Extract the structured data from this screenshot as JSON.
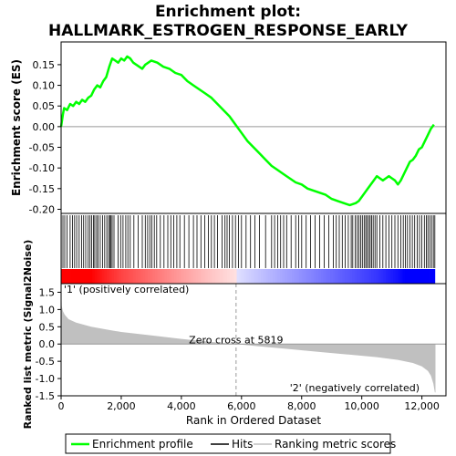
{
  "chart_data": {
    "title_line1": "Enrichment plot:",
    "title_line2": "HALLMARK_ESTROGEN_RESPONSE_EARLY",
    "es_panel": {
      "type": "line",
      "ylabel": "Enrichment score (ES)",
      "ylim": [
        -0.21,
        0.205
      ],
      "yticks": [
        0.15,
        0.1,
        0.05,
        0.0,
        -0.05,
        -0.1,
        -0.15,
        -0.2
      ],
      "ytick_labels": [
        "0.15",
        "0.10",
        "0.05",
        "0.00",
        "-0.05",
        "-0.10",
        "-0.15",
        "-0.20"
      ],
      "color": "#00ff00",
      "x": [
        0,
        60,
        100,
        200,
        300,
        400,
        500,
        600,
        700,
        800,
        900,
        1000,
        1100,
        1200,
        1300,
        1400,
        1500,
        1600,
        1700,
        1800,
        1900,
        2000,
        2100,
        2200,
        2300,
        2400,
        2500,
        2600,
        2700,
        2800,
        2900,
        3000,
        3200,
        3400,
        3600,
        3800,
        4000,
        4200,
        4400,
        4600,
        4800,
        5000,
        5200,
        5400,
        5600,
        5800,
        6000,
        6200,
        6400,
        6600,
        6800,
        7000,
        7200,
        7400,
        7600,
        7800,
        8000,
        8200,
        8400,
        8600,
        8800,
        9000,
        9200,
        9400,
        9600,
        9800,
        9900,
        10000,
        10100,
        10200,
        10300,
        10400,
        10500,
        10600,
        10700,
        10800,
        10900,
        11000,
        11100,
        11200,
        11300,
        11400,
        11500,
        11600,
        11700,
        11800,
        11900,
        12000,
        12100,
        12200,
        12300,
        12400
      ],
      "y": [
        0.0,
        0.03,
        0.045,
        0.04,
        0.055,
        0.05,
        0.06,
        0.055,
        0.065,
        0.06,
        0.07,
        0.075,
        0.09,
        0.1,
        0.095,
        0.11,
        0.12,
        0.145,
        0.165,
        0.16,
        0.155,
        0.165,
        0.16,
        0.17,
        0.165,
        0.155,
        0.15,
        0.145,
        0.14,
        0.15,
        0.155,
        0.16,
        0.155,
        0.145,
        0.14,
        0.13,
        0.125,
        0.11,
        0.1,
        0.09,
        0.08,
        0.07,
        0.055,
        0.04,
        0.025,
        0.005,
        -0.015,
        -0.035,
        -0.05,
        -0.065,
        -0.08,
        -0.095,
        -0.105,
        -0.115,
        -0.125,
        -0.135,
        -0.14,
        -0.15,
        -0.155,
        -0.16,
        -0.165,
        -0.175,
        -0.18,
        -0.185,
        -0.19,
        -0.185,
        -0.18,
        -0.17,
        -0.16,
        -0.15,
        -0.14,
        -0.13,
        -0.12,
        -0.125,
        -0.13,
        -0.125,
        -0.12,
        -0.125,
        -0.13,
        -0.14,
        -0.13,
        -0.115,
        -0.1,
        -0.085,
        -0.08,
        -0.07,
        -0.055,
        -0.05,
        -0.035,
        -0.02,
        -0.005,
        0.005
      ]
    },
    "hits_panel": {
      "hit_positions": [
        5,
        60,
        120,
        200,
        300,
        380,
        450,
        520,
        600,
        680,
        750,
        820,
        900,
        960,
        1020,
        1080,
        1120,
        1180,
        1230,
        1300,
        1380,
        1450,
        1520,
        1580,
        1620,
        1660,
        1700,
        1760,
        1900,
        1980,
        2060,
        2150,
        2220,
        2300,
        2420,
        2560,
        2700,
        2800,
        2880,
        2950,
        3020,
        3100,
        3180,
        3300,
        3420,
        3550,
        3650,
        3750,
        3850,
        3950,
        4100,
        4250,
        4400,
        4520,
        4650,
        4780,
        4900,
        5000,
        5100,
        5200,
        5350,
        5450,
        5520,
        5600,
        5700,
        5800,
        5900,
        6000,
        6150,
        6300,
        6450,
        6600,
        6800,
        7000,
        7100,
        7200,
        7300,
        7400,
        7500,
        7650,
        7800,
        7900,
        8000,
        8150,
        8300,
        8450,
        8600,
        8750,
        8900,
        9050,
        9150,
        9250,
        9350,
        9450,
        9550,
        9650,
        9700,
        9780,
        9850,
        9900,
        9960,
        10020,
        10080,
        10130,
        10180,
        10230,
        10280,
        10330,
        10380,
        10440,
        10500,
        10600,
        10700,
        10800,
        10900,
        11000,
        11100,
        11200,
        11300,
        11380,
        11450,
        11520,
        11600,
        11680,
        11760,
        11840,
        11920,
        12000,
        12080,
        12150,
        12200,
        12260,
        12320,
        12380,
        12430
      ]
    },
    "rank_panel": {
      "type": "area",
      "ylabel": "Ranked list metric (Signal2Noise)",
      "ylim": [
        -1.5,
        1.75
      ],
      "yticks": [
        1.5,
        1.0,
        0.5,
        0.0,
        -0.5,
        -1.0,
        -1.5
      ],
      "ytick_labels": [
        "1.5",
        "1.0",
        "0.5",
        "0.0",
        "-0.5",
        "-1.0",
        "-1.5"
      ],
      "color": "#c0c0c0",
      "x": [
        0,
        20,
        60,
        120,
        250,
        500,
        1000,
        1500,
        2000,
        3000,
        4000,
        5000,
        5819,
        6500,
        7500,
        8500,
        9500,
        10500,
        11200,
        11700,
        12000,
        12200,
        12300,
        12380,
        12430,
        12450
      ],
      "y": [
        1.65,
        1.1,
        0.95,
        0.85,
        0.72,
        0.62,
        0.5,
        0.42,
        0.35,
        0.25,
        0.15,
        0.06,
        0.0,
        -0.06,
        -0.14,
        -0.22,
        -0.3,
        -0.38,
        -0.46,
        -0.55,
        -0.65,
        -0.78,
        -0.92,
        -1.15,
        -1.4,
        -1.4
      ],
      "zero_cross_label": "Zero cross at 5819",
      "zero_cross": 5819,
      "pos_label": "'1' (positively correlated)",
      "neg_label": "'2' (negatively correlated)",
      "pos_color": "#ff0000",
      "neg_color": "#0000ff"
    },
    "x_axis": {
      "label": "Rank in Ordered Dataset",
      "xlim": [
        0,
        12800
      ],
      "ticks": [
        0,
        2000,
        4000,
        6000,
        8000,
        10000,
        12000
      ],
      "tick_labels": [
        "0",
        "2,000",
        "4,000",
        "6,000",
        "8,000",
        "10,000",
        "12,000"
      ],
      "n_genes": 12430
    },
    "legend": {
      "placement": "bottom",
      "items": [
        {
          "name": "Enrichment profile",
          "color": "#00ff00"
        },
        {
          "name": "Hits",
          "color": "#000000"
        },
        {
          "name": "Ranking metric scores",
          "color": "#c0c0c0"
        }
      ]
    }
  }
}
